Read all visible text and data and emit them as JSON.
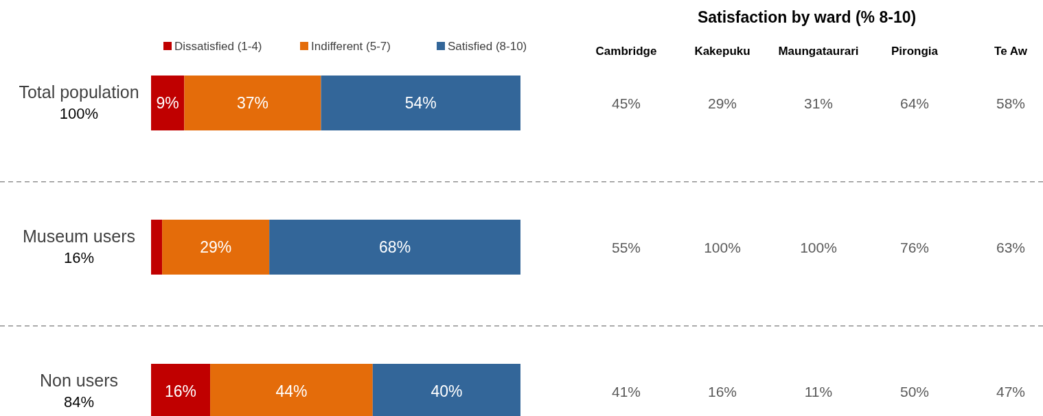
{
  "chart_data": [
    {
      "type": "bar",
      "orientation": "horizontal",
      "stacked": true,
      "legend": "top",
      "categories": [
        "Total population\n100%",
        "Museum users\n16%",
        "Non users\n84%"
      ],
      "series": [
        {
          "name": "Dissatisfied (1-4)",
          "color": "#c00000",
          "values": [
            9,
            3,
            16
          ],
          "value_labels": [
            "9%",
            null,
            "16%"
          ]
        },
        {
          "name": "Indifferent (5-7)",
          "color": "#e46c0a",
          "values": [
            37,
            29,
            44
          ],
          "value_labels": [
            "37%",
            "29%",
            "44%"
          ]
        },
        {
          "name": "Satisfied (8-10)",
          "color": "#336699",
          "values": [
            54,
            68,
            40
          ],
          "value_labels": [
            "54%",
            "68%",
            "40%"
          ]
        }
      ]
    },
    {
      "type": "other",
      "title": "Satisfaction by ward (% 8-10)",
      "categories": [
        "Cambridge",
        "Kakepuku",
        "Maungataurari",
        "Pirongia",
        "Te Aw"
      ],
      "series": [
        {
          "values": [
            45,
            29,
            31,
            64,
            58
          ],
          "value_labels": [
            "45%",
            "29%",
            "31%",
            "64%",
            "58%"
          ]
        },
        {
          "values": [
            55,
            100,
            100,
            76,
            63
          ],
          "value_labels": [
            "55%",
            "100%",
            "100%",
            "76%",
            "63%"
          ]
        },
        {
          "values": [
            41,
            16,
            11,
            50,
            47
          ],
          "value_labels": [
            "41%",
            "16%",
            "11%",
            "50%",
            "47%"
          ]
        }
      ]
    }
  ]
}
